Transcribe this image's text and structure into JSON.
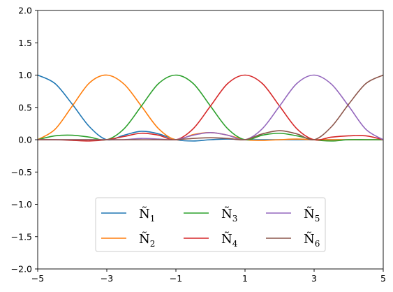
{
  "chart_data": {
    "type": "line",
    "title": "",
    "xlabel": "",
    "ylabel": "",
    "xlim": [
      -5,
      5
    ],
    "ylim": [
      -2,
      2
    ],
    "xticks": [
      -5,
      -3,
      -1,
      1,
      3,
      5
    ],
    "xtick_labels": [
      "−5",
      "−3",
      "−1",
      "1",
      "3",
      "5"
    ],
    "yticks": [
      -2,
      -1.5,
      -1,
      -0.5,
      0,
      0.5,
      1,
      1.5,
      2
    ],
    "ytick_labels": [
      "−2.0",
      "−1.5",
      "−1.0",
      "−0.5",
      "0.0",
      "0.5",
      "1.0",
      "1.5",
      "2.0"
    ],
    "grid": false,
    "legend_placement": "lower-center",
    "legend_columns": 3,
    "series": [
      {
        "name": "Ñ",
        "subscript": "1",
        "color": "#1f77b4",
        "peak": -5,
        "x": [
          -5,
          -4.5,
          -4,
          -3.5,
          -3,
          -2.5,
          -2,
          -1.5,
          -1,
          -0.5,
          0,
          0.5,
          1,
          1.5,
          2,
          2.5,
          3,
          3.5,
          4,
          4.5,
          5
        ],
        "y": [
          1.0,
          0.87,
          0.55,
          0.2,
          0.0,
          0.07,
          0.13,
          0.09,
          0.0,
          -0.02,
          0.0,
          0.01,
          0.0,
          0.0,
          0.0,
          0.0,
          0.0,
          0.0,
          0.0,
          0.0,
          0.0
        ]
      },
      {
        "name": "Ñ",
        "subscript": "2",
        "color": "#ff7f0e",
        "peak": -3,
        "x": [
          -5,
          -4.5,
          -4,
          -3.5,
          -3,
          -2.5,
          -2,
          -1.5,
          -1,
          -0.5,
          0,
          0.5,
          1,
          1.5,
          2,
          2.5,
          3,
          3.5,
          4,
          4.5,
          5
        ],
        "y": [
          0.0,
          0.16,
          0.52,
          0.88,
          1.0,
          0.86,
          0.52,
          0.17,
          0.0,
          0.08,
          0.11,
          0.07,
          0.0,
          -0.01,
          0.0,
          0.01,
          0.0,
          0.0,
          0.0,
          0.0,
          0.0
        ]
      },
      {
        "name": "Ñ",
        "subscript": "3",
        "color": "#2ca02c",
        "peak": -1,
        "x": [
          -5,
          -4.5,
          -4,
          -3.5,
          -3,
          -2.5,
          -2,
          -1.5,
          -1,
          -0.5,
          0,
          0.5,
          1,
          1.5,
          2,
          2.5,
          3,
          3.5,
          4,
          4.5,
          5
        ],
        "y": [
          0.0,
          0.06,
          0.07,
          0.04,
          0.0,
          0.17,
          0.52,
          0.87,
          1.0,
          0.87,
          0.52,
          0.17,
          0.0,
          0.07,
          0.1,
          0.06,
          0.0,
          -0.02,
          0.0,
          0.0,
          0.0
        ]
      },
      {
        "name": "Ñ",
        "subscript": "4",
        "color": "#d62728",
        "peak": 1,
        "x": [
          -5,
          -4.5,
          -4,
          -3.5,
          -3,
          -2.5,
          -2,
          -1.5,
          -1,
          -0.5,
          0,
          0.5,
          1,
          1.5,
          2,
          2.5,
          3,
          3.5,
          4,
          4.5,
          5
        ],
        "y": [
          0.0,
          0.0,
          -0.01,
          -0.02,
          0.0,
          0.05,
          0.1,
          0.07,
          0.0,
          0.17,
          0.52,
          0.87,
          1.0,
          0.87,
          0.52,
          0.17,
          0.0,
          0.04,
          0.06,
          0.06,
          0.0
        ]
      },
      {
        "name": "Ñ",
        "subscript": "5",
        "color": "#9467bd",
        "peak": 3,
        "x": [
          -5,
          -4.5,
          -4,
          -3.5,
          -3,
          -2.5,
          -2,
          -1.5,
          -1,
          -0.5,
          0,
          0.5,
          1,
          1.5,
          2,
          2.5,
          3,
          3.5,
          4,
          4.5,
          5
        ],
        "y": [
          0.0,
          0.0,
          0.0,
          0.0,
          0.0,
          0.0,
          0.02,
          0.01,
          0.0,
          0.07,
          0.11,
          0.07,
          0.0,
          0.17,
          0.52,
          0.87,
          1.0,
          0.86,
          0.52,
          0.16,
          0.0
        ]
      },
      {
        "name": "Ñ",
        "subscript": "6",
        "color": "#8c564b",
        "peak": 5,
        "x": [
          -5,
          -4.5,
          -4,
          -3.5,
          -3,
          -2.5,
          -2,
          -1.5,
          -1,
          -0.5,
          0,
          0.5,
          1,
          1.5,
          2,
          2.5,
          3,
          3.5,
          4,
          4.5,
          5
        ],
        "y": [
          0.0,
          0.0,
          0.0,
          0.0,
          0.0,
          0.0,
          0.0,
          0.0,
          0.0,
          0.02,
          0.03,
          0.02,
          0.0,
          0.09,
          0.14,
          0.09,
          0.0,
          0.2,
          0.55,
          0.87,
          1.0
        ]
      }
    ]
  }
}
